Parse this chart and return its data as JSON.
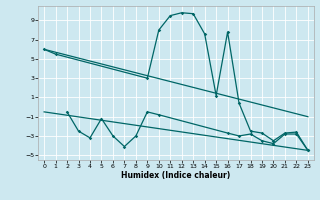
{
  "xlabel": "Humidex (Indice chaleur)",
  "bg_color": "#cde8f0",
  "grid_color": "#ffffff",
  "line_color": "#006666",
  "xlim": [
    -0.5,
    23.5
  ],
  "ylim": [
    -5.5,
    10.5
  ],
  "xticks": [
    0,
    1,
    2,
    3,
    4,
    5,
    6,
    7,
    8,
    9,
    10,
    11,
    12,
    13,
    14,
    15,
    16,
    17,
    18,
    19,
    20,
    21,
    22,
    23
  ],
  "yticks": [
    -5,
    -3,
    -1,
    1,
    3,
    5,
    7,
    9
  ],
  "line1_x": [
    0,
    1,
    9,
    10,
    11,
    12,
    13,
    14,
    15,
    16,
    17,
    18,
    19,
    20,
    21,
    22,
    23
  ],
  "line1_y": [
    6.0,
    5.5,
    3.0,
    8.0,
    9.5,
    9.8,
    9.7,
    7.6,
    1.2,
    7.8,
    0.4,
    -2.5,
    -2.7,
    -3.5,
    -2.7,
    -2.6,
    -4.5
  ],
  "line2_x": [
    0,
    23
  ],
  "line2_y": [
    6.0,
    -1.0
  ],
  "line3_x": [
    2,
    3,
    4,
    5,
    6,
    7,
    8,
    9,
    10,
    16,
    17,
    18,
    19,
    20,
    21,
    22,
    23
  ],
  "line3_y": [
    -0.5,
    -2.5,
    -3.2,
    -1.2,
    -3.0,
    -4.1,
    -3.0,
    -0.5,
    -0.8,
    -2.7,
    -3.0,
    -2.8,
    -3.5,
    -3.8,
    -2.8,
    -2.8,
    -4.5
  ],
  "line4_x": [
    0,
    23
  ],
  "line4_y": [
    -0.5,
    -4.5
  ]
}
